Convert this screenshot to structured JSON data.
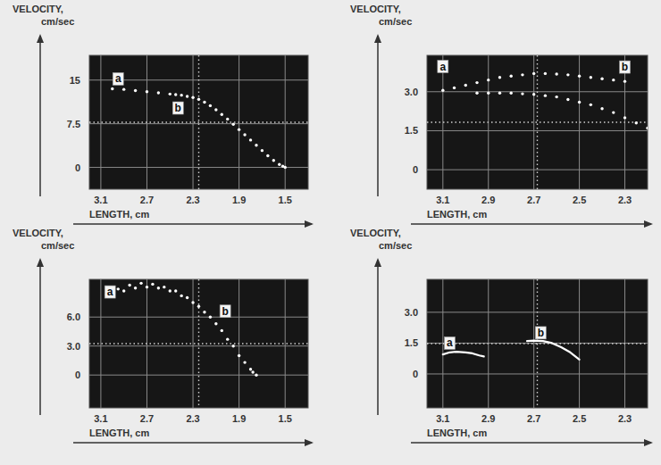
{
  "chart_data": [
    {
      "type": "scatter",
      "x_label": "LENGTH, cm",
      "y_label": "VELOCITY, cm/sec",
      "xlim": [
        3.2,
        1.3
      ],
      "ylim": [
        -3.75,
        19.25
      ],
      "xticks": [
        3.1,
        2.7,
        2.3,
        1.9,
        1.5
      ],
      "yticks": [
        0,
        7.5,
        15
      ],
      "grid": true,
      "series": [
        {
          "color": "#ffffff",
          "marker": "dot",
          "x": [
            3.0,
            2.9,
            2.8,
            2.7,
            2.6,
            2.5,
            2.45,
            2.4,
            2.35,
            2.3,
            2.25,
            2.2,
            2.15,
            2.1,
            2.05,
            2.0,
            1.95,
            1.9,
            1.85,
            1.8,
            1.75,
            1.7,
            1.65,
            1.6,
            1.55,
            1.52,
            1.5
          ],
          "values": [
            13.5,
            13.4,
            13.2,
            13.0,
            12.8,
            12.6,
            12.5,
            12.4,
            12.2,
            12.0,
            11.7,
            11.2,
            10.6,
            9.9,
            9.1,
            8.3,
            7.4,
            6.5,
            5.6,
            4.7,
            3.8,
            2.9,
            2.0,
            1.2,
            0.5,
            0.2,
            0
          ]
        }
      ],
      "annotations": [
        {
          "text": "a",
          "x": 2.95,
          "y": 15.2
        },
        {
          "text": "b",
          "x": 2.43,
          "y": 10.2
        }
      ]
    },
    {
      "type": "scatter",
      "x_label": "LENGTH, cm",
      "y_label": "VELOCITY, cm/sec",
      "xlim": [
        3.17,
        2.2
      ],
      "ylim": [
        -0.75,
        4.4
      ],
      "xticks": [
        3.1,
        2.9,
        2.7,
        2.5,
        2.3
      ],
      "yticks": [
        0,
        1.5,
        {
          "value": 3,
          "label": "3.0"
        }
      ],
      "grid": true,
      "series": [
        {
          "color": "#ffffff",
          "marker": "dot",
          "x": [
            3.1,
            3.05,
            3.0,
            2.95,
            2.9,
            2.85,
            2.8,
            2.75,
            2.7,
            2.65,
            2.6,
            2.55,
            2.5,
            2.45,
            2.4,
            2.35,
            2.3
          ],
          "values": [
            3.05,
            3.15,
            3.25,
            3.35,
            3.45,
            3.55,
            3.6,
            3.65,
            3.7,
            3.7,
            3.68,
            3.65,
            3.6,
            3.55,
            3.5,
            3.45,
            3.4
          ]
        },
        {
          "color": "#ffffff",
          "marker": "dot",
          "x": [
            2.95,
            2.9,
            2.85,
            2.8,
            2.75,
            2.7,
            2.65,
            2.6,
            2.55,
            2.5,
            2.45,
            2.4,
            2.35,
            2.3,
            2.25,
            2.2
          ],
          "values": [
            2.95,
            2.95,
            2.95,
            2.95,
            2.92,
            2.9,
            2.85,
            2.8,
            2.7,
            2.6,
            2.5,
            2.35,
            2.2,
            2.0,
            1.8,
            1.6
          ]
        }
      ],
      "annotations": [
        {
          "text": "a",
          "x": 3.1,
          "y": 3.97
        },
        {
          "text": "b",
          "x": 2.3,
          "y": 3.95
        }
      ]
    },
    {
      "type": "scatter",
      "x_label": "LENGTH, cm",
      "y_label": "VELOCITY, cm/sec",
      "xlim": [
        3.2,
        1.3
      ],
      "ylim": [
        -3.4,
        9.9
      ],
      "xticks": [
        3.1,
        2.7,
        2.3,
        1.9,
        1.5
      ],
      "yticks": [
        0,
        {
          "value": 3,
          "label": "3.0"
        },
        {
          "value": 6,
          "label": "6.0"
        }
      ],
      "grid": true,
      "series": [
        {
          "color": "#ffffff",
          "marker": "dot",
          "x": [
            3.05,
            2.95,
            2.85,
            2.75,
            2.65,
            2.55,
            2.45,
            2.35,
            2.25,
            2.15,
            2.05,
            1.95,
            1.85,
            1.78
          ],
          "values": [
            8.3,
            8.9,
            9.3,
            9.5,
            9.4,
            9.1,
            8.7,
            8.0,
            7.1,
            6.0,
            4.6,
            3.0,
            1.3,
            0.3
          ]
        },
        {
          "color": "#ffffff",
          "marker": "dot",
          "x": [
            3.0,
            2.9,
            2.8,
            2.7,
            2.6,
            2.5,
            2.4,
            2.3,
            2.2,
            2.1,
            2.0,
            1.9,
            1.8,
            1.75
          ],
          "values": [
            8.2,
            8.7,
            9.0,
            9.1,
            9.0,
            8.7,
            8.2,
            7.5,
            6.5,
            5.3,
            3.7,
            2.0,
            0.6,
            0.0
          ]
        }
      ],
      "annotations": [
        {
          "text": "a",
          "x": 3.02,
          "y": 8.6
        },
        {
          "text": "b",
          "x": 2.02,
          "y": 6.6
        }
      ]
    },
    {
      "type": "line",
      "x_label": "LENGTH, cm",
      "y_label": "VELOCITY, cm/sec",
      "xlim": [
        3.17,
        2.2
      ],
      "ylim": [
        -1.65,
        4.6
      ],
      "xticks": [
        3.1,
        2.9,
        2.7,
        2.5,
        2.3
      ],
      "yticks": [
        0,
        1.5,
        {
          "value": 3,
          "label": "3.0"
        }
      ],
      "grid": true,
      "series": [
        {
          "color": "#ffffff",
          "line_style": "solid",
          "x": [
            3.1,
            3.07,
            3.04,
            3.0,
            2.97,
            2.94,
            2.92
          ],
          "values": [
            0.95,
            1.05,
            1.08,
            1.05,
            1.0,
            0.9,
            0.85
          ]
        },
        {
          "color": "#ffffff",
          "line_style": "solid",
          "x": [
            2.73,
            2.7,
            2.66,
            2.62,
            2.58,
            2.54,
            2.5
          ],
          "values": [
            1.6,
            1.62,
            1.6,
            1.5,
            1.3,
            1.05,
            0.7
          ]
        }
      ],
      "annotations": [
        {
          "text": "a",
          "x": 3.07,
          "y": 1.5
        },
        {
          "text": "b",
          "x": 2.67,
          "y": 2.0
        }
      ]
    }
  ]
}
